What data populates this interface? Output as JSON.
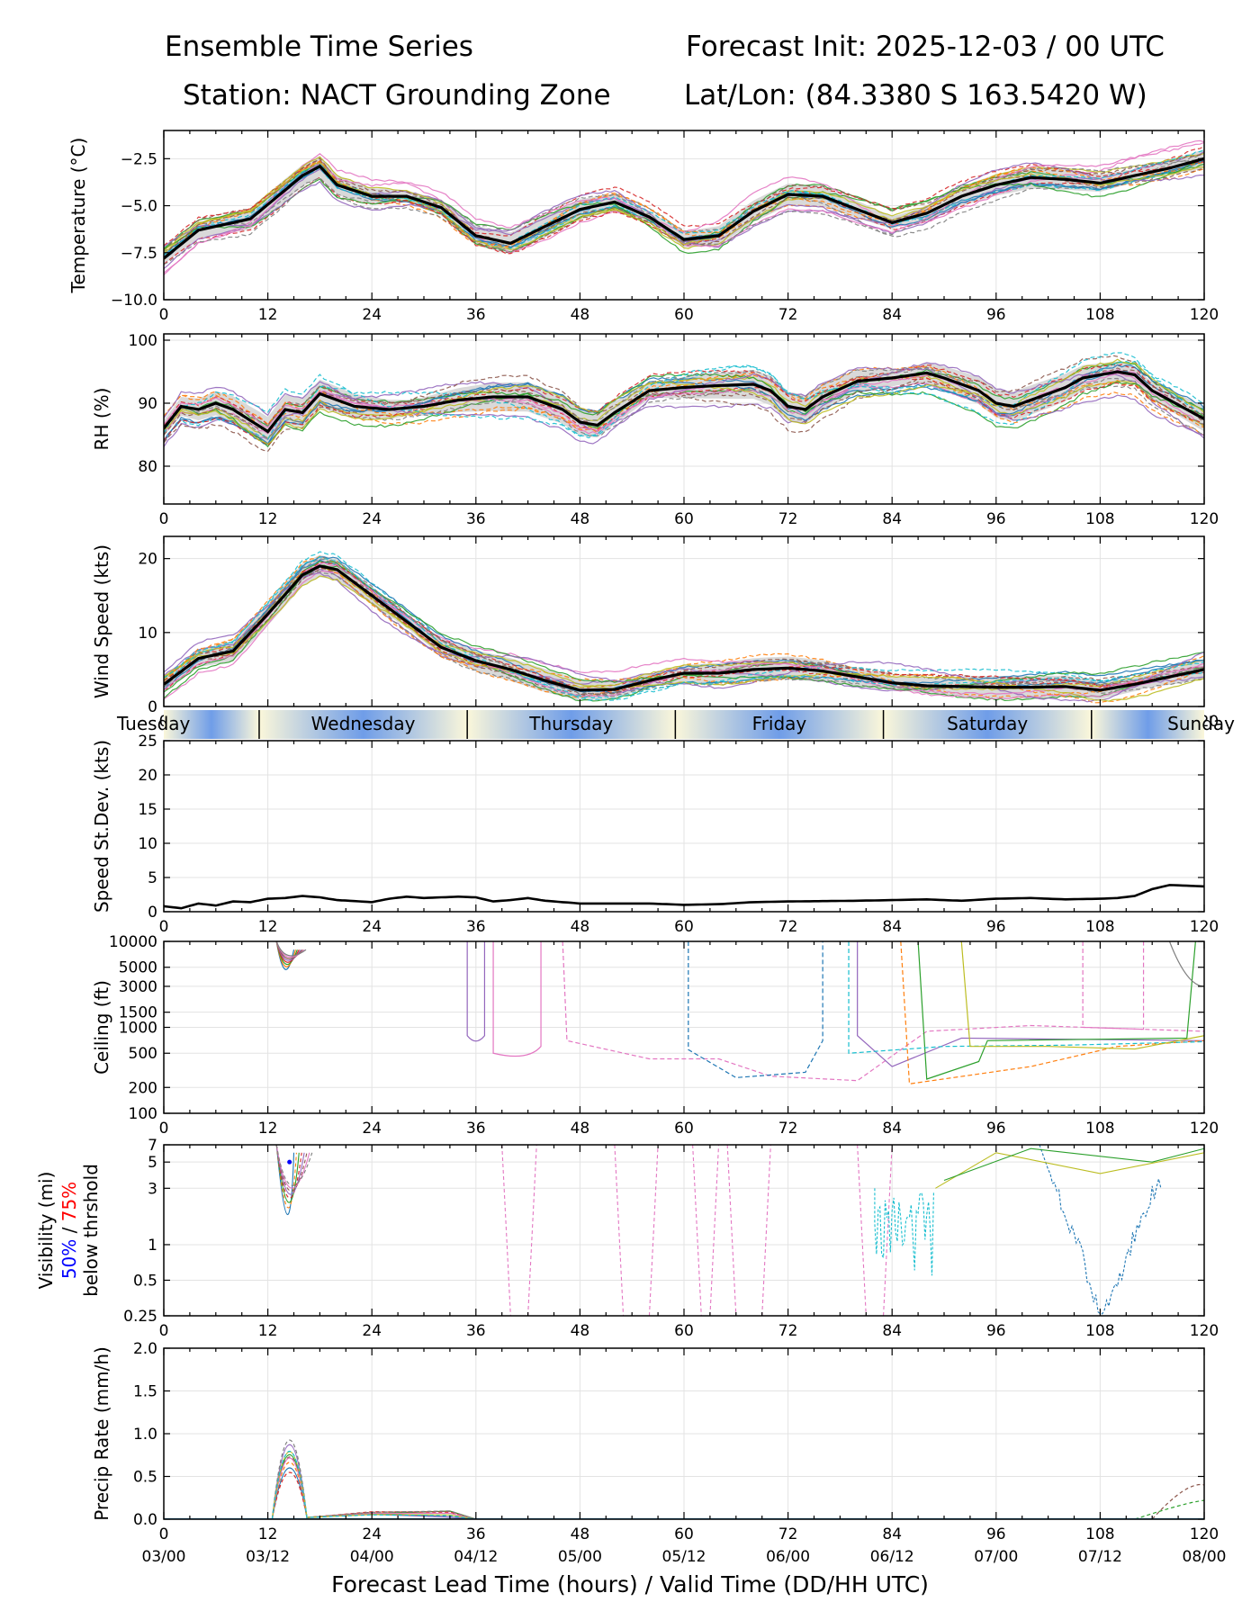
{
  "header": {
    "title": "Ensemble Time Series",
    "init": "Forecast Init: 2025-12-03 / 00 UTC",
    "station": "Station: NACT Grounding Zone",
    "latlon": "Lat/Lon: (84.3380 S 163.5420 W)"
  },
  "x_axis_label": "Forecast Lead Time (hours) / Valid Time (DD/HH UTC)",
  "colors": {
    "mean": "#000000",
    "spread": "#d9d9d9",
    "grid": "#e3e3e3",
    "day_blue": "#6f9de8",
    "day_cream": "#fbf7da",
    "vis_50": "#0000ff",
    "vis_75": "#ff0000",
    "members": [
      "#1f77b4",
      "#ff7f0e",
      "#2ca02c",
      "#d62728",
      "#9467bd",
      "#8c564b",
      "#e377c2",
      "#7f7f7f",
      "#bcbd22",
      "#17becf"
    ]
  },
  "chart_data": {
    "type": "line",
    "x_range": [
      0,
      120
    ],
    "x_ticks": [
      0,
      12,
      24,
      36,
      48,
      60,
      72,
      84,
      96,
      108,
      120
    ],
    "valid_time_labels": [
      "03/00",
      "03/12",
      "04/00",
      "04/12",
      "05/00",
      "05/12",
      "06/00",
      "06/12",
      "07/00",
      "07/12",
      "08/00"
    ],
    "day_bar": {
      "boundaries": [
        11,
        35,
        59,
        83,
        107
      ],
      "labels": [
        "Tuesday",
        "Wednesday",
        "Thursday",
        "Friday",
        "Saturday",
        "Sunday"
      ],
      "label_hours": [
        -1,
        23,
        47,
        71,
        95,
        119
      ]
    },
    "panels": [
      {
        "id": "temperature",
        "ylabel": "Temperature (°C)",
        "scale": "linear",
        "ylim": [
          -10,
          -1
        ],
        "yticks": [
          -10,
          -7.5,
          -5,
          -2.5
        ],
        "ytick_labels": [
          "−10.0",
          "−7.5",
          "−5.0",
          "−2.5"
        ],
        "mean": {
          "x": [
            0,
            4,
            10,
            16,
            18,
            20,
            24,
            28,
            32,
            36,
            40,
            44,
            48,
            52,
            56,
            60,
            64,
            68,
            72,
            76,
            80,
            84,
            88,
            92,
            96,
            100,
            104,
            108,
            112,
            116,
            120
          ],
          "y": [
            -7.8,
            -6.3,
            -5.7,
            -3.4,
            -2.9,
            -3.9,
            -4.5,
            -4.5,
            -5.1,
            -6.6,
            -7.0,
            -6.1,
            -5.2,
            -4.8,
            -5.6,
            -6.8,
            -6.6,
            -5.3,
            -4.4,
            -4.5,
            -5.2,
            -5.9,
            -5.4,
            -4.5,
            -3.9,
            -3.5,
            -3.6,
            -3.8,
            -3.4,
            -3.0,
            -2.5
          ]
        },
        "spread": 0.45
      },
      {
        "id": "rh",
        "ylabel": "RH (%)",
        "scale": "linear",
        "ylim": [
          74,
          101
        ],
        "yticks": [
          80,
          90,
          100
        ],
        "ytick_labels": [
          "80",
          "90",
          "100"
        ],
        "mean": {
          "x": [
            0,
            2,
            4,
            6,
            8,
            12,
            14,
            16,
            18,
            22,
            26,
            30,
            34,
            38,
            42,
            46,
            48,
            50,
            52,
            56,
            60,
            64,
            68,
            70,
            72,
            74,
            76,
            80,
            84,
            88,
            90,
            94,
            96,
            98,
            100,
            104,
            106,
            110,
            112,
            114,
            118,
            120
          ],
          "y": [
            86,
            89.5,
            89,
            90,
            89,
            85.5,
            89,
            88.5,
            91.5,
            89.5,
            89,
            89.5,
            90.5,
            91,
            91,
            89,
            87,
            86.5,
            88.5,
            92,
            92.5,
            92.8,
            93,
            92,
            89.5,
            89,
            91,
            93.5,
            94,
            94.8,
            94,
            92,
            90,
            89.5,
            90.5,
            92.5,
            94,
            95,
            94.5,
            92,
            89,
            87.5
          ]
        },
        "spread": 1.8
      },
      {
        "id": "wind",
        "ylabel": "Wind Speed (kts)",
        "scale": "linear",
        "ylim": [
          0,
          23
        ],
        "yticks": [
          0,
          10,
          20
        ],
        "ytick_labels": [
          "0",
          "10",
          "20"
        ],
        "mean": {
          "x": [
            0,
            4,
            8,
            12,
            16,
            18,
            20,
            24,
            28,
            32,
            36,
            40,
            44,
            48,
            52,
            56,
            60,
            64,
            68,
            72,
            76,
            80,
            84,
            88,
            92,
            96,
            100,
            104,
            108,
            112,
            116,
            120
          ],
          "y": [
            3,
            6.5,
            7.5,
            12.5,
            17.8,
            19,
            18.5,
            15,
            11.5,
            8,
            6.2,
            5,
            3.5,
            2.2,
            2.3,
            3.5,
            4.5,
            4.5,
            5,
            5.2,
            4.8,
            4,
            3.2,
            2.8,
            2.7,
            2.6,
            2.6,
            2.7,
            2.2,
            3,
            4,
            5
          ]
        },
        "spread": 1.2
      },
      {
        "id": "speed_sd",
        "ylabel": "Speed St.Dev. (kts)",
        "scale": "linear",
        "ylim": [
          0,
          25
        ],
        "yticks": [
          0,
          5,
          10,
          15,
          20,
          25
        ],
        "ytick_labels": [
          "0",
          "5",
          "10",
          "15",
          "20",
          "25"
        ],
        "mean": {
          "x": [
            0,
            2,
            4,
            6,
            8,
            10,
            12,
            14,
            16,
            18,
            20,
            24,
            26,
            28,
            30,
            34,
            36,
            38,
            40,
            42,
            44,
            46,
            48,
            52,
            56,
            60,
            64,
            68,
            72,
            80,
            84,
            88,
            92,
            96,
            100,
            104,
            108,
            110,
            112,
            114,
            116,
            118,
            120
          ],
          "y": [
            0.8,
            0.5,
            1.2,
            0.9,
            1.5,
            1.4,
            1.9,
            2.0,
            2.3,
            2.1,
            1.7,
            1.4,
            1.9,
            2.2,
            2.0,
            2.2,
            2.1,
            1.5,
            1.7,
            2.0,
            1.6,
            1.4,
            1.2,
            1.2,
            1.2,
            1.0,
            1.1,
            1.4,
            1.5,
            1.6,
            1.7,
            1.8,
            1.6,
            1.9,
            2.0,
            1.8,
            1.9,
            2.0,
            2.3,
            3.3,
            3.9,
            3.8,
            3.7
          ]
        },
        "spread": 0
      },
      {
        "id": "ceiling",
        "ylabel": "Ceiling (ft)",
        "scale": "log",
        "ylim": [
          100,
          10000
        ],
        "yticks": [
          100,
          200,
          500,
          1000,
          1500,
          3000,
          5000,
          10000
        ],
        "ytick_labels": [
          "100",
          "200",
          "500",
          "1000",
          "1500",
          "3000",
          "5000",
          "10000"
        ],
        "mean": null,
        "spread": 0
      },
      {
        "id": "visibility",
        "ylabel": "Visibility (mi)",
        "ylabel_50": "50%",
        "ylabel_sep": " / ",
        "ylabel_75": "75%",
        "ylabel_2": "below thrshold",
        "scale": "log",
        "ylim": [
          0.25,
          7
        ],
        "yticks": [
          0.25,
          0.5,
          1,
          3,
          5,
          7
        ],
        "ytick_labels": [
          "0.25",
          "0.5",
          "1",
          "3",
          "5",
          "7"
        ],
        "mean": null,
        "spread": 0
      },
      {
        "id": "precip",
        "ylabel": "Precip Rate (mm/h)",
        "scale": "linear",
        "ylim": [
          0,
          2
        ],
        "yticks": [
          0,
          0.5,
          1,
          1.5,
          2
        ],
        "ytick_labels": [
          "0.0",
          "0.5",
          "1.0",
          "1.5",
          "2.0"
        ],
        "mean": null,
        "spread": 0
      }
    ]
  }
}
